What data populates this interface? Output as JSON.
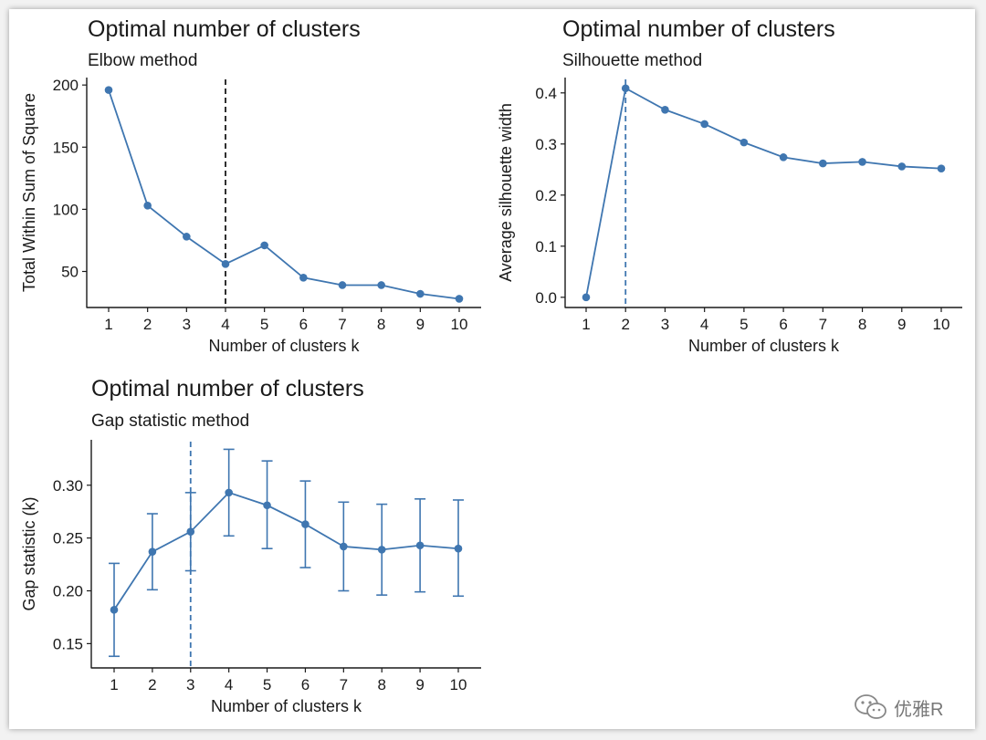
{
  "watermark": {
    "text": "优雅R",
    "icon": "wechat-icon"
  },
  "theme": {
    "series_color": "#3f76b0",
    "axis_color": "#1a1a1a",
    "vline_elbow": "#1a1a1a",
    "vline_other": "#3f76b0"
  },
  "chart_data": [
    {
      "id": "elbow",
      "type": "line",
      "title": "Optimal number of clusters",
      "subtitle": "Elbow method",
      "xlabel": "Number of clusters k",
      "ylabel": "Total Within Sum of Square",
      "x": [
        1,
        2,
        3,
        4,
        5,
        6,
        7,
        8,
        9,
        10
      ],
      "values": [
        196,
        103,
        78,
        56,
        71,
        45,
        39,
        39,
        32,
        28
      ],
      "ylim": [
        21,
        206
      ],
      "yticks": [
        50,
        100,
        150,
        200
      ],
      "vline": 4,
      "vline_style": "black-dashed",
      "grid": false
    },
    {
      "id": "silhouette",
      "type": "line",
      "title": "Optimal number of clusters",
      "subtitle": "Silhouette method",
      "xlabel": "Number of clusters k",
      "ylabel": "Average silhouette width",
      "x": [
        1,
        2,
        3,
        4,
        5,
        6,
        7,
        8,
        9,
        10
      ],
      "values": [
        0.0,
        0.409,
        0.367,
        0.339,
        0.303,
        0.274,
        0.262,
        0.265,
        0.256,
        0.252
      ],
      "ylim": [
        -0.02,
        0.43
      ],
      "yticks": [
        0.0,
        0.1,
        0.2,
        0.3,
        0.4
      ],
      "ytick_labels": [
        "0.0",
        "0.1",
        "0.2",
        "0.3",
        "0.4"
      ],
      "vline": 2,
      "vline_style": "blue-dashed",
      "grid": false
    },
    {
      "id": "gap",
      "type": "line",
      "title": "Optimal number of clusters",
      "subtitle": "Gap statistic method",
      "xlabel": "Number of clusters k",
      "ylabel": "Gap statistic (k)",
      "x": [
        1,
        2,
        3,
        4,
        5,
        6,
        7,
        8,
        9,
        10
      ],
      "values": [
        0.182,
        0.237,
        0.256,
        0.293,
        0.281,
        0.263,
        0.242,
        0.239,
        0.243,
        0.24
      ],
      "error_low": [
        0.138,
        0.201,
        0.219,
        0.252,
        0.24,
        0.222,
        0.2,
        0.196,
        0.199,
        0.195
      ],
      "error_high": [
        0.226,
        0.273,
        0.293,
        0.334,
        0.323,
        0.304,
        0.284,
        0.282,
        0.287,
        0.286
      ],
      "ylim": [
        0.127,
        0.343
      ],
      "yticks": [
        0.15,
        0.2,
        0.25,
        0.3
      ],
      "ytick_labels": [
        "0.15",
        "0.20",
        "0.25",
        "0.30"
      ],
      "vline": 3,
      "vline_style": "blue-dashed",
      "grid": false
    }
  ]
}
